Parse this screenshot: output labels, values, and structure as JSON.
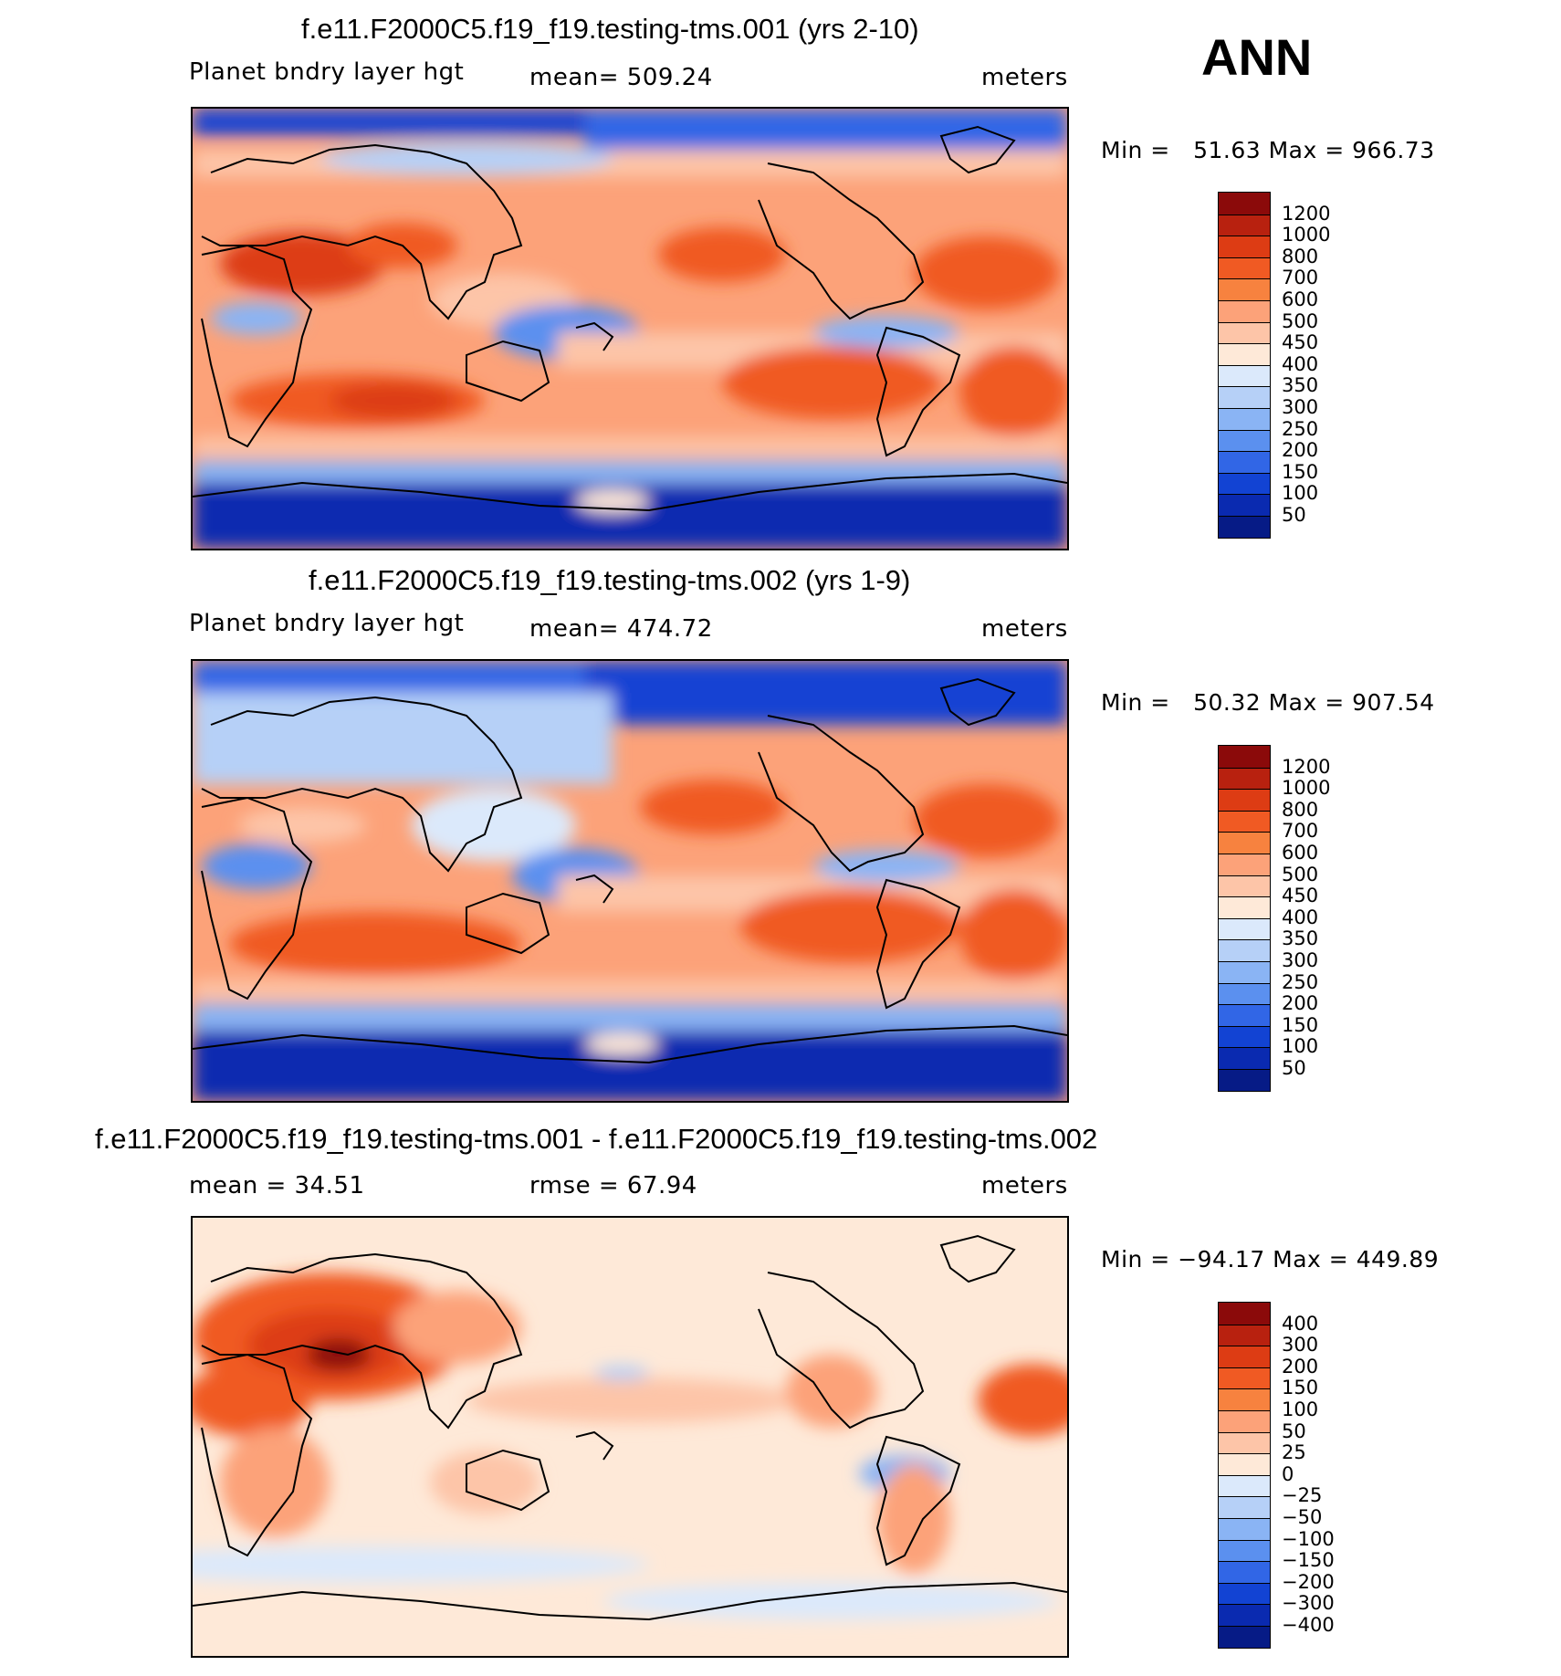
{
  "season": "ANN",
  "panels": [
    {
      "title": "f.e11.F2000C5.f19_f19.testing-tms.001 (yrs 2-10)",
      "left_label": "Planet bndry layer hgt",
      "center_label": "mean=  509.24",
      "right_label": "meters",
      "minmax": "Min =   51.63 Max = 966.73",
      "colorbar": {
        "labels": [
          "1200",
          "1000",
          "800",
          "700",
          "600",
          "500",
          "450",
          "400",
          "350",
          "300",
          "250",
          "200",
          "150",
          "100",
          "50"
        ],
        "colors": [
          "#8b0a0a",
          "#b8210f",
          "#dd3c14",
          "#f05a23",
          "#f7823f",
          "#fca279",
          "#fdc5a8",
          "#fee9d8",
          "#dbe9fb",
          "#b6d0f7",
          "#8ab4f4",
          "#5b90ef",
          "#3166e6",
          "#1243d3",
          "#0a2ab0",
          "#061b86"
        ]
      },
      "map_style": "control"
    },
    {
      "title": "f.e11.F2000C5.f19_f19.testing-tms.002 (yrs 1-9)",
      "left_label": "Planet bndry layer hgt",
      "center_label": "mean=  474.72",
      "right_label": "meters",
      "minmax": "Min =   50.32 Max = 907.54",
      "colorbar": {
        "labels": [
          "1200",
          "1000",
          "800",
          "700",
          "600",
          "500",
          "450",
          "400",
          "350",
          "300",
          "250",
          "200",
          "150",
          "100",
          "50"
        ],
        "colors": [
          "#8b0a0a",
          "#b8210f",
          "#dd3c14",
          "#f05a23",
          "#f7823f",
          "#fca279",
          "#fdc5a8",
          "#fee9d8",
          "#dbe9fb",
          "#b6d0f7",
          "#8ab4f4",
          "#5b90ef",
          "#3166e6",
          "#1243d3",
          "#0a2ab0",
          "#061b86"
        ]
      },
      "map_style": "test"
    },
    {
      "title": "f.e11.F2000C5.f19_f19.testing-tms.001 - f.e11.F2000C5.f19_f19.testing-tms.002",
      "left_label": "mean =   34.51",
      "center_label": "rmse =   67.94",
      "right_label": "meters",
      "minmax": "Min = −94.17 Max = 449.89",
      "colorbar": {
        "labels": [
          "400",
          "300",
          "200",
          "150",
          "100",
          "50",
          "25",
          "0",
          "−25",
          "−50",
          "−100",
          "−150",
          "−200",
          "−300",
          "−400"
        ],
        "colors": [
          "#8b0a0a",
          "#b8210f",
          "#dd3c14",
          "#f05a23",
          "#f7823f",
          "#fca279",
          "#fdc5a8",
          "#fee9d8",
          "#dbe9fb",
          "#b6d0f7",
          "#8ab4f4",
          "#5b90ef",
          "#3166e6",
          "#1243d3",
          "#0a2ab0",
          "#061b86"
        ]
      },
      "map_style": "diff"
    }
  ]
}
